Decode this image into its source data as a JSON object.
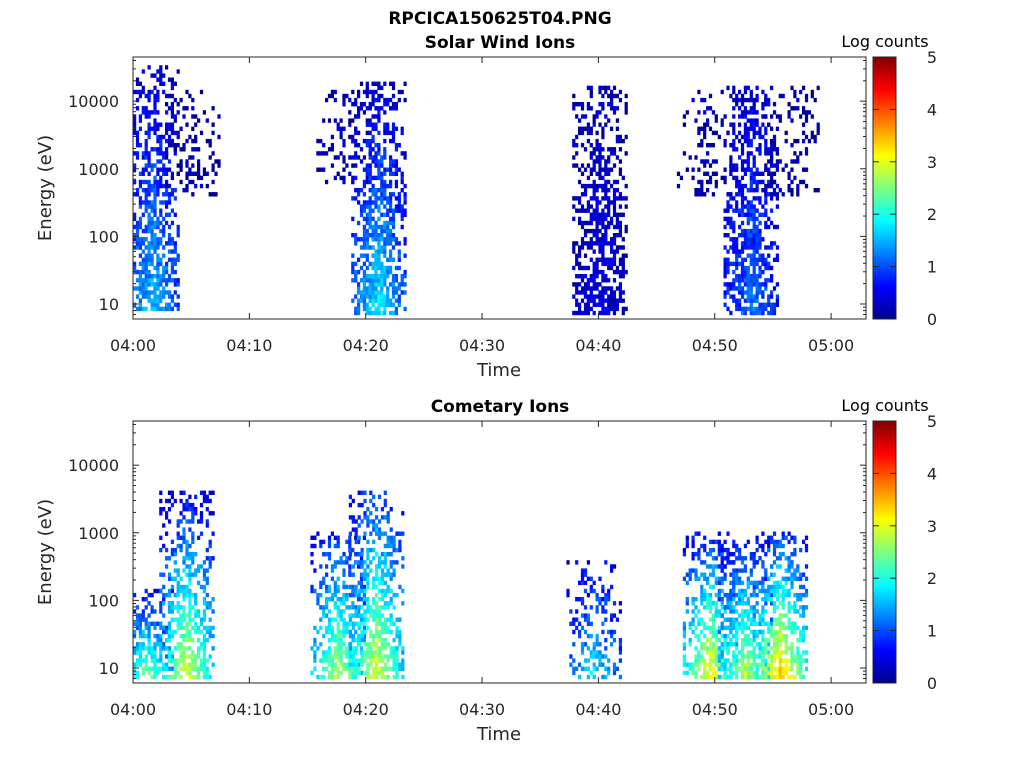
{
  "figure": {
    "suptitle": "RPCICA150625T04.PNG"
  },
  "chart_data": [
    {
      "type": "heatmap",
      "title": "Solar Wind Ions",
      "xlabel": "Time",
      "ylabel": "Energy (eV)",
      "x_ticks": [
        "04:00",
        "04:10",
        "04:20",
        "04:30",
        "04:40",
        "04:50",
        "05:00"
      ],
      "x_range": [
        "04:00",
        "05:03"
      ],
      "y_scale": "log",
      "y_ticks": [
        "10",
        "100",
        "1000",
        "10000"
      ],
      "y_range": [
        6,
        45000
      ],
      "colorbar": {
        "label": "Log counts",
        "ticks": [
          "0",
          "1",
          "2",
          "3",
          "4",
          "5"
        ],
        "range": [
          0,
          5
        ],
        "colormap": "jet"
      },
      "bursts": [
        {
          "t": 1.5,
          "e_min": 8,
          "e_max": 35000,
          "low_level": 1.6,
          "high_level": 0.4,
          "density": 0.9
        },
        {
          "t": 5.0,
          "e_min": 400,
          "e_max": 15000,
          "low_level": 0.2,
          "high_level": 0.2,
          "density": 0.4
        },
        {
          "t": 18.0,
          "e_min": 600,
          "e_max": 15000,
          "low_level": 0.3,
          "high_level": 0.2,
          "density": 0.35
        },
        {
          "t": 21.0,
          "e_min": 7,
          "e_max": 20000,
          "low_level": 1.8,
          "high_level": 0.4,
          "density": 0.95
        },
        {
          "t": 40.0,
          "e_min": 7,
          "e_max": 18000,
          "low_level": 0.5,
          "high_level": 0.3,
          "density": 0.9
        },
        {
          "t": 49.0,
          "e_min": 400,
          "e_max": 15000,
          "low_level": 0.2,
          "high_level": 0.2,
          "density": 0.35
        },
        {
          "t": 53.0,
          "e_min": 7,
          "e_max": 18000,
          "low_level": 1.2,
          "high_level": 0.4,
          "density": 0.95
        },
        {
          "t": 56.5,
          "e_min": 400,
          "e_max": 18000,
          "low_level": 0.2,
          "high_level": 0.2,
          "density": 0.4
        }
      ]
    },
    {
      "type": "heatmap",
      "title": "Cometary Ions",
      "xlabel": "Time",
      "ylabel": "Energy (eV)",
      "x_ticks": [
        "04:00",
        "04:10",
        "04:20",
        "04:30",
        "04:40",
        "04:50",
        "05:00"
      ],
      "x_range": [
        "04:00",
        "05:03"
      ],
      "y_scale": "log",
      "y_ticks": [
        "10",
        "100",
        "1000",
        "10000"
      ],
      "y_range": [
        6,
        45000
      ],
      "colorbar": {
        "label": "Log counts",
        "ticks": [
          "0",
          "1",
          "2",
          "3",
          "4",
          "5"
        ],
        "range": [
          0,
          5
        ],
        "colormap": "jet"
      },
      "bursts": [
        {
          "t": 1.0,
          "e_min": 7,
          "e_max": 150,
          "low_level": 2.5,
          "high_level": 0.6,
          "density": 0.8
        },
        {
          "t": 4.5,
          "e_min": 7,
          "e_max": 4000,
          "low_level": 3.0,
          "high_level": 0.6,
          "density": 0.8
        },
        {
          "t": 17.5,
          "e_min": 7,
          "e_max": 1000,
          "low_level": 2.8,
          "high_level": 0.8,
          "density": 0.85
        },
        {
          "t": 20.8,
          "e_min": 7,
          "e_max": 4000,
          "low_level": 3.0,
          "high_level": 1.0,
          "density": 0.85
        },
        {
          "t": 39.5,
          "e_min": 7,
          "e_max": 400,
          "low_level": 1.8,
          "high_level": 0.6,
          "density": 0.6
        },
        {
          "t": 49.5,
          "e_min": 7,
          "e_max": 1000,
          "low_level": 3.2,
          "high_level": 0.8,
          "density": 0.85
        },
        {
          "t": 52.5,
          "e_min": 7,
          "e_max": 800,
          "low_level": 2.8,
          "high_level": 0.8,
          "density": 0.85
        },
        {
          "t": 55.5,
          "e_min": 7,
          "e_max": 1000,
          "low_level": 3.5,
          "high_level": 0.9,
          "density": 0.85
        }
      ]
    }
  ]
}
